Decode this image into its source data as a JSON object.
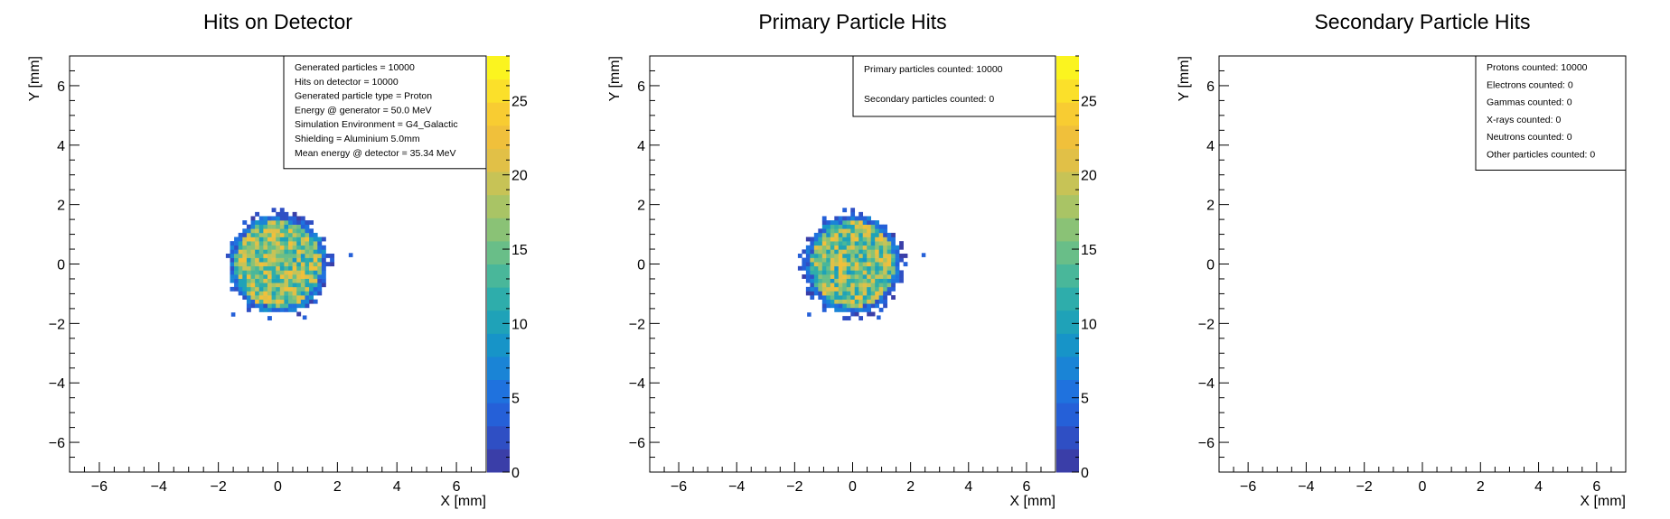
{
  "palette": {
    "background": "#ffffff",
    "frame": "#000000",
    "colorscale": [
      "#3a3ea8",
      "#2f4fc4",
      "#2560d8",
      "#1f72de",
      "#1a84d6",
      "#1794c8",
      "#1fa2b8",
      "#2eadab",
      "#49b79a",
      "#69be88",
      "#8ac276",
      "#a9c465",
      "#c7c356",
      "#e1c047",
      "#f0c03b",
      "#f8cc32",
      "#fbe02a",
      "#fbf41f"
    ]
  },
  "chart_data": [
    {
      "type": "heatmap",
      "title": "Hits on Detector",
      "xlabel": "X [mm]",
      "ylabel": "Y [mm]",
      "xlim": [
        -7,
        7
      ],
      "ylim": [
        -7,
        7
      ],
      "xticks": [
        "−6",
        "−4",
        "−2",
        "0",
        "2",
        "4",
        "6"
      ],
      "yticks": [
        "−6",
        "−4",
        "−2",
        "0",
        "2",
        "4",
        "6"
      ],
      "colorbar": {
        "min": 0,
        "max": 28,
        "ticks": [
          "0",
          "5",
          "10",
          "15",
          "20",
          "25"
        ]
      },
      "distribution": {
        "shape": "disk",
        "center": [
          0.0,
          0.0
        ],
        "radius_mm": 1.6,
        "mean_count": 16,
        "outliers": [
          [
            2.45,
            0.3
          ],
          [
            -1.5,
            -1.7
          ],
          [
            0.9,
            -1.8
          ]
        ]
      },
      "statsbox": {
        "lines": [
          "Generated particles = 10000",
          "Hits on detector = 10000",
          "Generated particle type = Proton",
          "Energy @ generator = 50.0 MeV",
          "Simulation Environment = G4_Galactic",
          "Shielding = Aluminium 5.0mm",
          "Mean energy @ detector = 35.34 MeV"
        ]
      }
    },
    {
      "type": "heatmap",
      "title": "Primary Particle Hits",
      "xlabel": "X [mm]",
      "ylabel": "Y [mm]",
      "xlim": [
        -7,
        7
      ],
      "ylim": [
        -7,
        7
      ],
      "xticks": [
        "−6",
        "−4",
        "−2",
        "0",
        "2",
        "4",
        "6"
      ],
      "yticks": [
        "−6",
        "−4",
        "−2",
        "0",
        "2",
        "4",
        "6"
      ],
      "colorbar": {
        "min": 0,
        "max": 28,
        "ticks": [
          "0",
          "5",
          "10",
          "15",
          "20",
          "25"
        ]
      },
      "distribution": {
        "shape": "disk",
        "center": [
          0.0,
          0.0
        ],
        "radius_mm": 1.6,
        "mean_count": 16,
        "outliers": [
          [
            2.45,
            0.3
          ],
          [
            -1.5,
            -1.7
          ],
          [
            0.9,
            -1.8
          ]
        ]
      },
      "statsbox": {
        "lines": [
          "Primary particles counted: 10000",
          "Secondary particles counted: 0"
        ]
      }
    },
    {
      "type": "heatmap",
      "title": "Secondary Particle Hits",
      "xlabel": "X [mm]",
      "ylabel": "Y [mm]",
      "xlim": [
        -7,
        7
      ],
      "ylim": [
        -7,
        7
      ],
      "xticks": [
        "−6",
        "−4",
        "−2",
        "0",
        "2",
        "4",
        "6"
      ],
      "yticks": [
        "−6",
        "−4",
        "−2",
        "0",
        "2",
        "4",
        "6"
      ],
      "colorbar": null,
      "distribution": null,
      "statsbox": {
        "lines": [
          "Protons counted: 10000",
          "Electrons counted: 0",
          "Gammas counted: 0",
          "X-rays counted: 0",
          "Neutrons counted: 0",
          "Other particles counted: 0"
        ]
      }
    }
  ]
}
